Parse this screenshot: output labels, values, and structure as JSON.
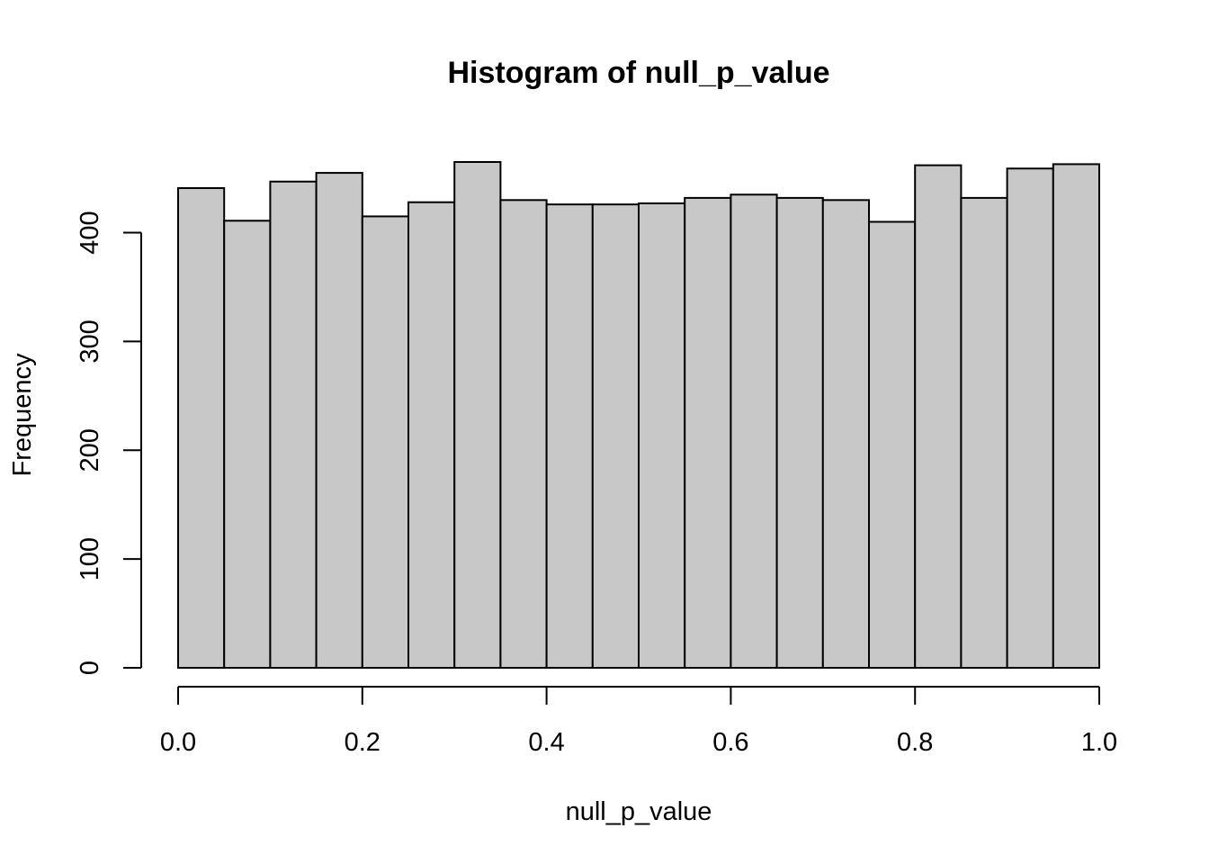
{
  "chart_data": {
    "type": "bar",
    "title": "Histogram of null_p_value",
    "xlabel": "null_p_value",
    "ylabel": "Frequency",
    "bin_edges": [
      0.0,
      0.05,
      0.1,
      0.15,
      0.2,
      0.25,
      0.3,
      0.35,
      0.4,
      0.45,
      0.5,
      0.55,
      0.6,
      0.65,
      0.7,
      0.75,
      0.8,
      0.85,
      0.9,
      0.95,
      1.0
    ],
    "values": [
      441,
      411,
      447,
      455,
      415,
      428,
      465,
      430,
      426,
      426,
      427,
      432,
      435,
      432,
      430,
      410,
      462,
      432,
      459,
      463
    ],
    "xlim": [
      0.0,
      1.0
    ],
    "ylim": [
      0,
      465
    ],
    "x_ticks": [
      0.0,
      0.2,
      0.4,
      0.6,
      0.8,
      1.0
    ],
    "x_tick_labels": [
      "0.0",
      "0.2",
      "0.4",
      "0.6",
      "0.8",
      "1.0"
    ],
    "y_ticks": [
      0,
      100,
      200,
      300,
      400
    ],
    "y_tick_labels": [
      "0",
      "100",
      "200",
      "300",
      "400"
    ],
    "bar_fill": "#c8c8c8",
    "bar_stroke": "#000000",
    "grid": false,
    "legend": "none"
  }
}
